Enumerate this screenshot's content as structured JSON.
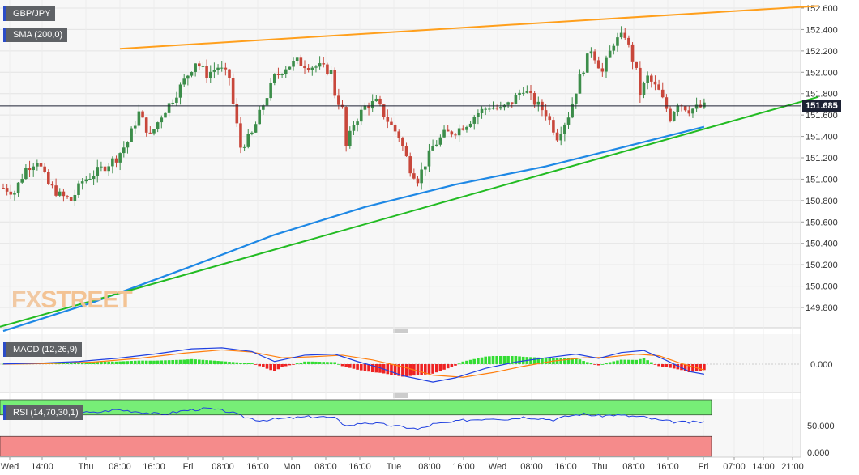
{
  "chart_labels": {
    "symbol": "GBP/JPY",
    "sma": "SMA (200,0)",
    "macd": "MACD (12,26,9)",
    "rsi": "RSI (14,70,30,1)",
    "current_price": "151.685",
    "logo_fx": "FX",
    "logo_street": "STREET"
  },
  "colors": {
    "bull": "#3c8d4a",
    "bear": "#c8473b",
    "sma": "#1e88e5",
    "upper_trend": "#ff9f1c",
    "lower_trend": "#22bb22",
    "macd_line": "#2040e0",
    "signal_line": "#ff7f0e",
    "hist_pos": "#33dd33",
    "hist_neg": "#ee2222",
    "rsi_line": "#2040e0",
    "rsi_over": "#77ee77",
    "rsi_under": "#f58b8b"
  },
  "chart_data": [
    {
      "type": "candlestick",
      "title": "GBP/JPY",
      "ylim": [
        149.7,
        152.65
      ],
      "y_ticks": [
        "152.600",
        "152.400",
        "152.200",
        "152.000",
        "151.800",
        "151.600",
        "151.400",
        "151.200",
        "151.000",
        "150.800",
        "150.600",
        "150.400",
        "150.200",
        "150.000",
        "149.800"
      ],
      "x_ticks": [
        "Wed",
        "14:00",
        "Thu",
        "08:00",
        "16:00",
        "Fri",
        "08:00",
        "16:00",
        "Mon",
        "08:00",
        "16:00",
        "Tue",
        "08:00",
        "16:00",
        "Wed",
        "08:00",
        "16:00",
        "Thu",
        "08:00",
        "16:00",
        "Fri",
        "07:00",
        "14:00",
        "21:00"
      ],
      "close_path": [
        [
          0,
          150.92
        ],
        [
          3,
          150.88
        ],
        [
          6,
          151.1
        ],
        [
          9,
          151.18
        ],
        [
          12,
          150.95
        ],
        [
          15,
          150.85
        ],
        [
          18,
          150.8
        ],
        [
          21,
          150.98
        ],
        [
          24,
          151.05
        ],
        [
          27,
          151.12
        ],
        [
          30,
          151.2
        ],
        [
          33,
          151.35
        ],
        [
          36,
          151.62
        ],
        [
          39,
          151.4
        ],
        [
          42,
          151.6
        ],
        [
          45,
          151.75
        ],
        [
          48,
          151.92
        ],
        [
          51,
          152.1
        ],
        [
          54,
          151.98
        ],
        [
          57,
          152.05
        ],
        [
          60,
          151.95
        ],
        [
          61,
          151.7
        ],
        [
          63,
          151.3
        ],
        [
          66,
          151.42
        ],
        [
          69,
          151.7
        ],
        [
          72,
          151.95
        ],
        [
          75,
          152.05
        ],
        [
          78,
          152.1
        ],
        [
          81,
          152.06
        ],
        [
          84,
          152.05
        ],
        [
          87,
          152.0
        ],
        [
          88,
          151.8
        ],
        [
          90,
          151.65
        ],
        [
          91,
          151.3
        ],
        [
          93,
          151.52
        ],
        [
          96,
          151.68
        ],
        [
          99,
          151.72
        ],
        [
          102,
          151.55
        ],
        [
          105,
          151.4
        ],
        [
          108,
          151.1
        ],
        [
          110,
          151.0
        ],
        [
          112,
          151.15
        ],
        [
          114,
          151.3
        ],
        [
          117,
          151.42
        ],
        [
          120,
          151.45
        ],
        [
          123,
          151.52
        ],
        [
          126,
          151.62
        ],
        [
          129,
          151.68
        ],
        [
          132,
          151.65
        ],
        [
          135,
          151.72
        ],
        [
          138,
          151.85
        ],
        [
          141,
          151.72
        ],
        [
          144,
          151.62
        ],
        [
          147,
          151.4
        ],
        [
          150,
          151.6
        ],
        [
          153,
          151.95
        ],
        [
          156,
          152.22
        ],
        [
          159,
          152.0
        ],
        [
          162,
          152.28
        ],
        [
          165,
          152.35
        ],
        [
          168,
          152.0
        ],
        [
          169,
          151.8
        ],
        [
          171,
          151.95
        ],
        [
          174,
          151.82
        ],
        [
          177,
          151.58
        ],
        [
          179,
          151.72
        ],
        [
          182,
          151.65
        ],
        [
          186,
          151.68
        ]
      ],
      "sma_200": [
        [
          0,
          149.58
        ],
        [
          24,
          149.85
        ],
        [
          48,
          150.16
        ],
        [
          72,
          150.48
        ],
        [
          96,
          150.74
        ],
        [
          120,
          150.95
        ],
        [
          144,
          151.12
        ],
        [
          168,
          151.33
        ],
        [
          186,
          151.49
        ]
      ],
      "upper_trendline": [
        [
          30,
          152.22
        ],
        [
          228,
          152.62
        ]
      ],
      "lower_trendline": [
        [
          0,
          149.62
        ],
        [
          228,
          151.77
        ]
      ],
      "last_price": 151.685
    },
    {
      "type": "line",
      "title": "MACD (12,26,9)",
      "y_ticks": [
        "0.000"
      ],
      "series": [
        {
          "name": "MACD",
          "values": [
            [
              0,
              0.02
            ],
            [
              10,
              0.1
            ],
            [
              20,
              0.25
            ],
            [
              30,
              0.55
            ],
            [
              40,
              0.95
            ],
            [
              50,
              1.45
            ],
            [
              58,
              1.55
            ],
            [
              66,
              1.2
            ],
            [
              72,
              0.25
            ],
            [
              80,
              0.85
            ],
            [
              88,
              0.95
            ],
            [
              94,
              0.25
            ],
            [
              100,
              -0.35
            ],
            [
              106,
              -1.1
            ],
            [
              114,
              -1.7
            ],
            [
              120,
              -1.3
            ],
            [
              128,
              -0.4
            ],
            [
              136,
              0.2
            ],
            [
              144,
              0.6
            ],
            [
              152,
              0.95
            ],
            [
              158,
              0.55
            ],
            [
              164,
              1.1
            ],
            [
              170,
              1.3
            ],
            [
              176,
              0.35
            ],
            [
              182,
              -0.7
            ],
            [
              186,
              -0.95
            ]
          ]
        },
        {
          "name": "Signal",
          "values": [
            [
              0,
              0.0
            ],
            [
              12,
              0.06
            ],
            [
              24,
              0.2
            ],
            [
              36,
              0.55
            ],
            [
              48,
              1.05
            ],
            [
              58,
              1.35
            ],
            [
              66,
              1.15
            ],
            [
              74,
              0.6
            ],
            [
              82,
              0.7
            ],
            [
              90,
              0.85
            ],
            [
              98,
              0.4
            ],
            [
              106,
              -0.25
            ],
            [
              114,
              -1.05
            ],
            [
              122,
              -1.25
            ],
            [
              130,
              -0.8
            ],
            [
              138,
              -0.2
            ],
            [
              146,
              0.3
            ],
            [
              154,
              0.6
            ],
            [
              160,
              0.65
            ],
            [
              168,
              0.95
            ],
            [
              174,
              0.8
            ],
            [
              180,
              0.05
            ],
            [
              186,
              -0.55
            ]
          ]
        }
      ],
      "histogram_note": "MACD minus Signal"
    },
    {
      "type": "line",
      "title": "RSI (14,70,30,1)",
      "y_ticks": [
        "50.000",
        "0.000"
      ],
      "levels": [
        70,
        30
      ],
      "series": [
        {
          "name": "RSI",
          "values": [
            [
              0,
              66
            ],
            [
              6,
              70
            ],
            [
              12,
              72
            ],
            [
              18,
              76
            ],
            [
              24,
              74
            ],
            [
              30,
              80
            ],
            [
              36,
              76
            ],
            [
              42,
              71
            ],
            [
              48,
              78
            ],
            [
              54,
              82
            ],
            [
              60,
              76
            ],
            [
              64,
              66
            ],
            [
              68,
              60
            ],
            [
              72,
              62
            ],
            [
              76,
              64
            ],
            [
              80,
              66
            ],
            [
              84,
              67
            ],
            [
              88,
              64
            ],
            [
              90,
              54
            ],
            [
              92,
              50
            ],
            [
              96,
              56
            ],
            [
              100,
              53
            ],
            [
              104,
              49
            ],
            [
              108,
              46
            ],
            [
              110,
              43
            ],
            [
              112,
              47
            ],
            [
              114,
              53
            ],
            [
              118,
              55
            ],
            [
              122,
              60
            ],
            [
              126,
              62
            ],
            [
              130,
              64
            ],
            [
              134,
              62
            ],
            [
              138,
              66
            ],
            [
              142,
              64
            ],
            [
              146,
              61
            ],
            [
              150,
              68
            ],
            [
              154,
              72
            ],
            [
              158,
              68
            ],
            [
              162,
              70
            ],
            [
              166,
              68
            ],
            [
              170,
              66
            ],
            [
              174,
              60
            ],
            [
              178,
              57
            ],
            [
              182,
              56
            ],
            [
              186,
              57
            ]
          ]
        }
      ]
    }
  ]
}
